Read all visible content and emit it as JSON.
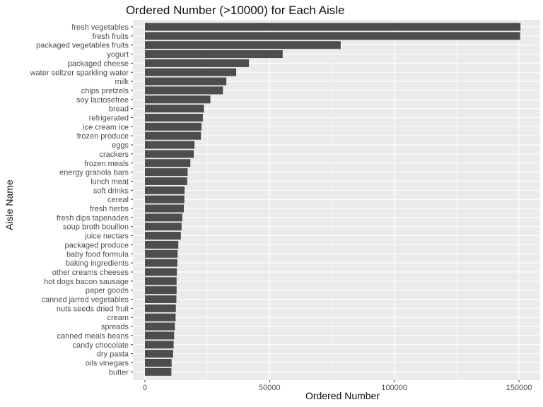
{
  "chart_data": {
    "type": "bar",
    "orientation": "horizontal",
    "title": "Ordered Number (>10000) for Each Aisle",
    "xlabel": "Ordered Number",
    "ylabel": "Aisle Name",
    "xlim": [
      0,
      152000
    ],
    "xticks": [
      0,
      50000,
      100000,
      150000
    ],
    "grid": true,
    "colors": {
      "bar": "#4d4d4d",
      "panel": "#ebebeb",
      "grid_major": "#ffffff"
    },
    "categories": [
      "fresh vegetables",
      "fresh fruits",
      "packaged vegetables fruits",
      "yogurt",
      "packaged cheese",
      "water seltzer sparkling water",
      "milk",
      "chips pretzels",
      "soy lactosefree",
      "bread",
      "refrigerated",
      "ice cream ice",
      "frozen produce",
      "eggs",
      "crackers",
      "frozen meals",
      "energy granola bars",
      "lunch meat",
      "soft drinks",
      "cereal",
      "fresh herbs",
      "fresh dips tapenades",
      "soup broth bouillon",
      "juice nectars",
      "packaged produce",
      "baby food formula",
      "baking ingredients",
      "other creams cheeses",
      "hot dogs bacon sausage",
      "paper goods",
      "canned jarred vegetables",
      "nuts seeds dried fruit",
      "cream",
      "spreads",
      "canned meals beans",
      "candy chocolate",
      "dry pasta",
      "oils vinegars",
      "butter"
    ],
    "values": [
      150609,
      150473,
      78493,
      55240,
      41699,
      36617,
      32644,
      31269,
      26240,
      23635,
      23228,
      22676,
      22474,
      19875,
      19592,
      18221,
      17127,
      16957,
      15900,
      15800,
      15600,
      15000,
      14700,
      14400,
      13400,
      13100,
      13000,
      12800,
      12700,
      12700,
      12600,
      12400,
      12300,
      12000,
      11700,
      11500,
      11300,
      10700,
      10600
    ]
  }
}
